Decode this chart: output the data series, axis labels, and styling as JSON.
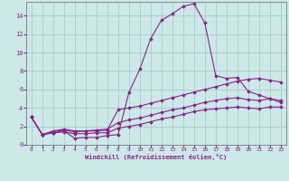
{
  "xlabel": "Windchill (Refroidissement éolien,°C)",
  "bg_color": "#cce8e8",
  "grid_color": "#aacccc",
  "line_color": "#882288",
  "xlim": [
    -0.5,
    23.5
  ],
  "ylim": [
    0,
    15.5
  ],
  "xticks": [
    0,
    1,
    2,
    3,
    4,
    5,
    6,
    7,
    8,
    9,
    10,
    11,
    12,
    13,
    14,
    15,
    16,
    17,
    18,
    19,
    20,
    21,
    22,
    23
  ],
  "yticks": [
    0,
    2,
    4,
    6,
    8,
    10,
    12,
    14
  ],
  "series": [
    [
      3.0,
      1.1,
      1.3,
      1.5,
      0.7,
      0.8,
      0.8,
      1.0,
      1.1,
      5.7,
      8.2,
      11.5,
      13.5,
      14.2,
      15.0,
      15.3,
      13.2,
      7.5,
      7.2,
      7.3,
      5.8,
      5.4,
      5.0,
      4.6
    ],
    [
      3.0,
      1.1,
      1.5,
      1.7,
      1.5,
      1.5,
      1.5,
      1.6,
      3.8,
      4.0,
      4.2,
      4.5,
      4.8,
      5.1,
      5.4,
      5.7,
      6.0,
      6.3,
      6.6,
      6.9,
      7.1,
      7.2,
      7.0,
      6.8
    ],
    [
      3.0,
      1.1,
      1.4,
      1.6,
      1.4,
      1.5,
      1.6,
      1.7,
      2.4,
      2.7,
      2.9,
      3.2,
      3.5,
      3.8,
      4.0,
      4.3,
      4.6,
      4.8,
      5.0,
      5.1,
      4.9,
      4.8,
      5.0,
      4.8
    ],
    [
      3.0,
      1.1,
      1.3,
      1.4,
      1.2,
      1.2,
      1.3,
      1.3,
      1.8,
      2.0,
      2.2,
      2.5,
      2.8,
      3.0,
      3.3,
      3.6,
      3.8,
      3.9,
      4.0,
      4.1,
      4.0,
      3.9,
      4.1,
      4.1
    ]
  ]
}
